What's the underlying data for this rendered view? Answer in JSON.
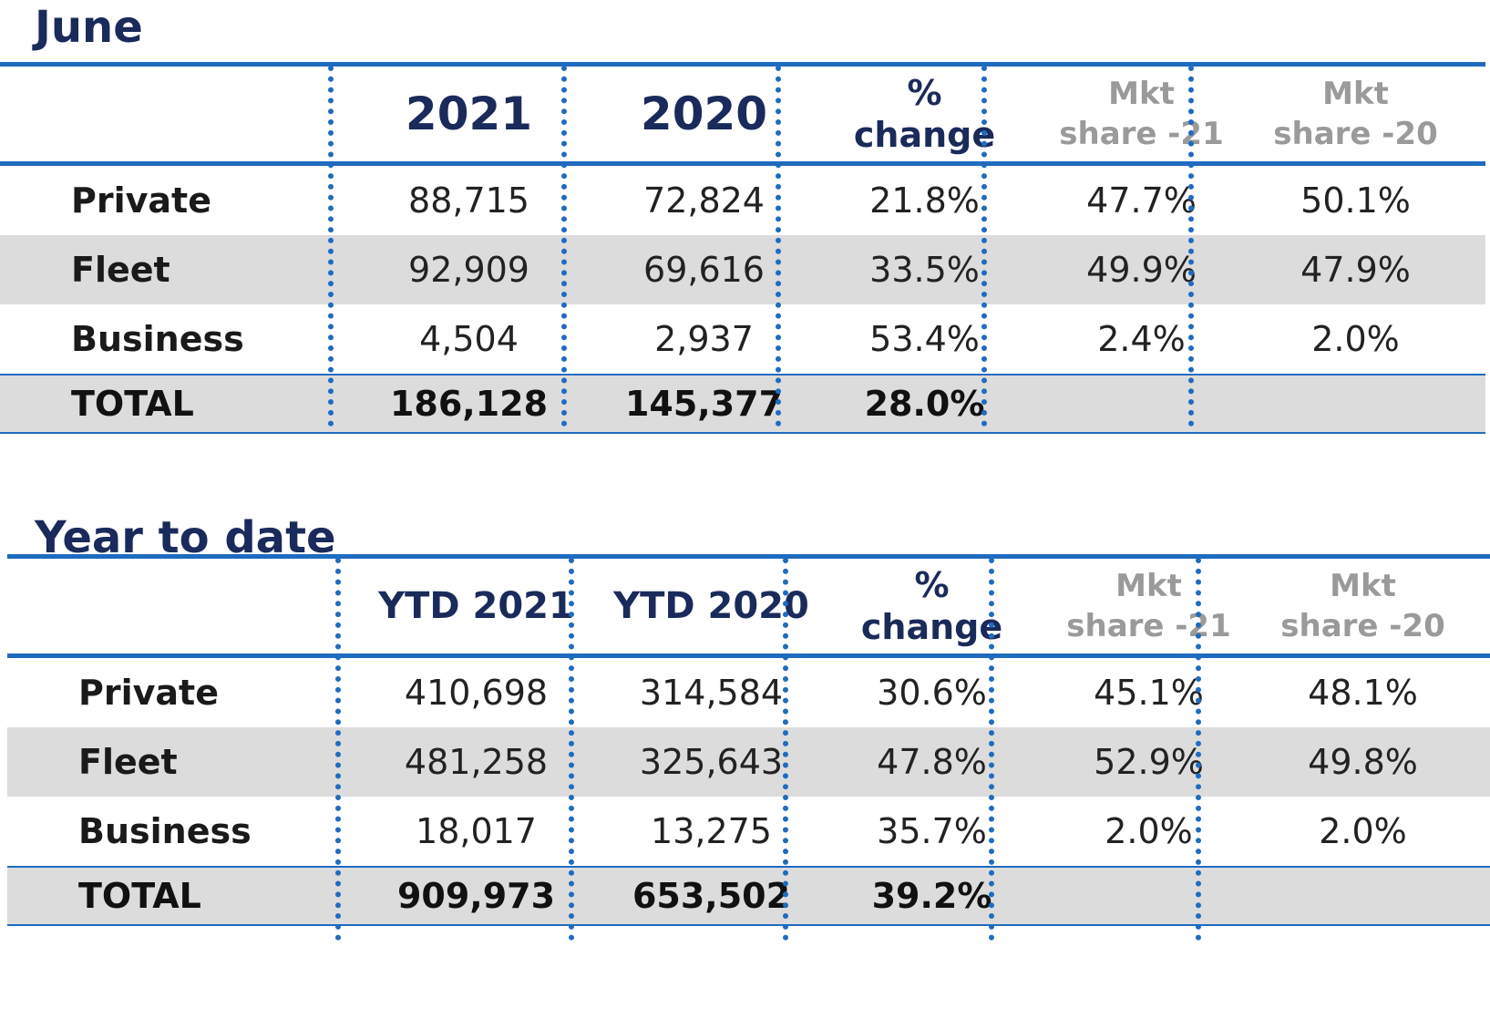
{
  "june": {
    "title": "June",
    "headers": {
      "col1": "2021",
      "col2": "2020",
      "change_line1": "%",
      "change_line2": "change",
      "mkt21_line1": "Mkt",
      "mkt21_line2": "share -21",
      "mkt20_line1": "Mkt",
      "mkt20_line2": "share -20"
    },
    "rows": [
      {
        "label": "Private",
        "v2021": "88,715",
        "v2020": "72,824",
        "change": "21.8%",
        "mkt21": "47.7%",
        "mkt20": "50.1%"
      },
      {
        "label": "Fleet",
        "v2021": "92,909",
        "v2020": "69,616",
        "change": "33.5%",
        "mkt21": "49.9%",
        "mkt20": "47.9%"
      },
      {
        "label": "Business",
        "v2021": "4,504",
        "v2020": "2,937",
        "change": "53.4%",
        "mkt21": "2.4%",
        "mkt20": "2.0%"
      }
    ],
    "total": {
      "label": "TOTAL",
      "v2021": "186,128",
      "v2020": "145,377",
      "change": "28.0%"
    }
  },
  "ytd": {
    "title": "Year to date",
    "headers": {
      "col1": "YTD 2021",
      "col2": "YTD 2020",
      "change_line1": "%",
      "change_line2": "change",
      "mkt21_line1": "Mkt",
      "mkt21_line2": "share -21",
      "mkt20_line1": "Mkt",
      "mkt20_line2": "share -20"
    },
    "rows": [
      {
        "label": "Private",
        "v2021": "410,698",
        "v2020": "314,584",
        "change": "30.6%",
        "mkt21": "45.1%",
        "mkt20": "48.1%"
      },
      {
        "label": "Fleet",
        "v2021": "481,258",
        "v2020": "325,643",
        "change": "47.8%",
        "mkt21": "52.9%",
        "mkt20": "49.8%"
      },
      {
        "label": "Business",
        "v2021": "18,017",
        "v2020": "13,275",
        "change": "35.7%",
        "mkt21": "2.0%",
        "mkt20": "2.0%"
      }
    ],
    "total": {
      "label": "TOTAL",
      "v2021": "909,973",
      "v2020": "653,502",
      "change": "39.2%"
    }
  },
  "colors": {
    "accent": "#1f6bbf",
    "heading": "#1a2a5a",
    "muted": "#9a9a9a",
    "shade": "#dcdcdc"
  }
}
